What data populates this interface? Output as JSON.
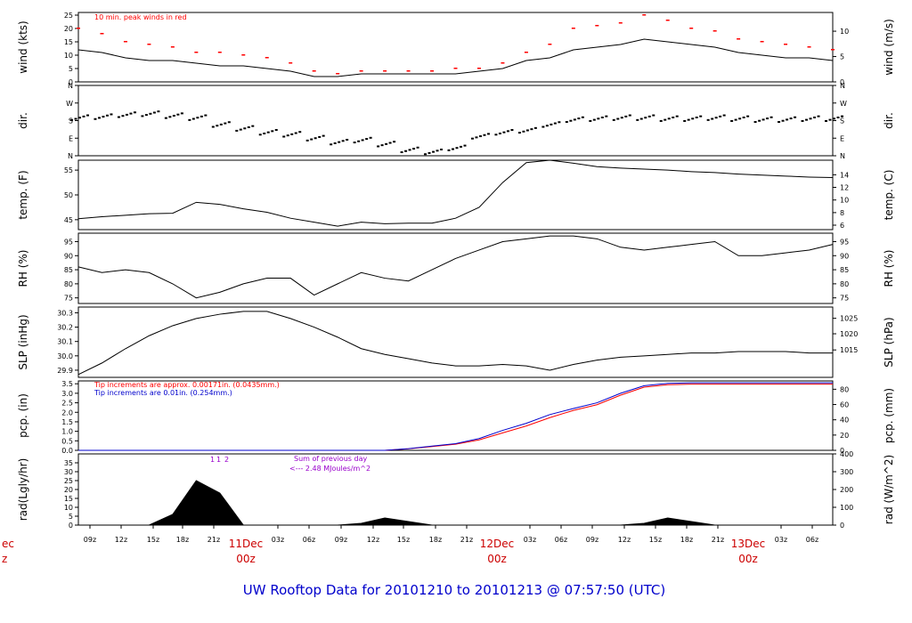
{
  "title": "UW Rooftop Data for 20101210  to  20101213 @ 07:57:50  (UTC)",
  "colors": {
    "red": "#ff0000",
    "blue": "#0000cc",
    "purple": "#9900cc",
    "daylabel": "#cc0000"
  },
  "x_axis": {
    "tick_labels": [
      "09z",
      "12z",
      "15z",
      "18z",
      "21z",
      "03z",
      "06z",
      "09z",
      "12z",
      "15z",
      "18z",
      "21z",
      "03z",
      "06z",
      "09z",
      "12z",
      "15z",
      "18z",
      "21z",
      "03z",
      "06z"
    ],
    "day_labels": [
      {
        "top": "ec",
        "bottom": "z"
      },
      {
        "top": "11Dec",
        "bottom": "00z"
      },
      {
        "top": "12Dec",
        "bottom": "00z"
      },
      {
        "top": "13Dec",
        "bottom": "00z"
      }
    ]
  },
  "chart_data": [
    {
      "type": "line",
      "ylabel_left": "wind (kts)",
      "ylabel_right": "wind (m/s)",
      "yticks_left": [
        "0",
        "5",
        "10",
        "15",
        "20",
        "25"
      ],
      "yticks_right": [
        "0",
        "5",
        "10"
      ],
      "annotation": "10 min. peak winds in red",
      "series": [
        {
          "values": [
            12,
            11,
            9,
            8,
            8,
            7,
            6,
            6,
            5,
            4,
            2,
            2,
            3,
            3,
            3,
            3,
            3,
            4,
            5,
            8,
            9,
            12,
            13,
            14,
            16,
            15,
            14,
            13,
            11,
            10,
            9,
            9,
            8
          ]
        },
        {
          "values": [
            20,
            18,
            15,
            14,
            13,
            11,
            11,
            10,
            9,
            7,
            4,
            3,
            4,
            4,
            4,
            4,
            5,
            5,
            7,
            11,
            14,
            20,
            21,
            22,
            25,
            23,
            20,
            19,
            16,
            15,
            14,
            13,
            12
          ]
        }
      ]
    },
    {
      "type": "scatter",
      "ylabel_left": "dir.",
      "ylabel_right": "dir.",
      "yticks_left": [
        "N",
        "E",
        "S",
        "W",
        "N"
      ],
      "yticks_right": [
        "N",
        "E",
        "S",
        "W",
        "N"
      ],
      "series": [
        {
          "values": [
            195,
            200,
            210,
            215,
            205,
            195,
            160,
            140,
            120,
            110,
            90,
            70,
            80,
            60,
            30,
            20,
            40,
            100,
            120,
            130,
            160,
            185,
            190,
            195,
            195,
            190,
            190,
            195,
            190,
            185,
            185,
            190,
            190
          ]
        }
      ]
    },
    {
      "type": "line",
      "ylabel_left": "temp. (F)",
      "ylabel_right": "temp. (C)",
      "yticks_left": [
        "45",
        "50",
        "55"
      ],
      "yticks_right": [
        "6",
        "8",
        "10",
        "12",
        "14"
      ],
      "series": [
        {
          "values": [
            45.2,
            45.6,
            45.9,
            46.2,
            46.3,
            48.5,
            48.1,
            47.2,
            46.5,
            45.3,
            44.5,
            43.7,
            44.5,
            44.2,
            44.3,
            44.3,
            45.3,
            47.5,
            52.5,
            56.5,
            57.0,
            56.4,
            55.7,
            55.4,
            55.2,
            55.0,
            54.7,
            54.5,
            54.2,
            54.0,
            53.8,
            53.6,
            53.5
          ]
        }
      ]
    },
    {
      "type": "line",
      "ylabel_left": "RH (%)",
      "ylabel_right": "RH (%)",
      "yticks_left": [
        "75",
        "80",
        "85",
        "90",
        "95"
      ],
      "yticks_right": [
        "75",
        "80",
        "85",
        "90",
        "95"
      ],
      "series": [
        {
          "values": [
            86,
            84,
            85,
            84,
            80,
            75,
            77,
            80,
            82,
            82,
            76,
            80,
            84,
            82,
            81,
            85,
            89,
            92,
            95,
            96,
            97,
            97,
            96,
            93,
            92,
            93,
            94,
            95,
            90,
            90,
            91,
            92,
            94
          ]
        }
      ]
    },
    {
      "type": "line",
      "ylabel_left": "SLP (inHg)",
      "ylabel_right": "SLP (hPa)",
      "yticks_left": [
        "29.9",
        "30.0",
        "30.1",
        "30.2",
        "30.3"
      ],
      "yticks_right": [
        "1015",
        "1020",
        "1025"
      ],
      "series": [
        {
          "values": [
            29.87,
            29.95,
            30.05,
            30.14,
            30.21,
            30.26,
            30.29,
            30.31,
            30.31,
            30.26,
            30.2,
            30.13,
            30.05,
            30.01,
            29.98,
            29.95,
            29.93,
            29.93,
            29.94,
            29.93,
            29.9,
            29.94,
            29.97,
            29.99,
            30.0,
            30.01,
            30.02,
            30.02,
            30.03,
            30.03,
            30.03,
            30.02,
            30.02
          ]
        }
      ]
    },
    {
      "type": "line",
      "ylabel_left": "pcp. (in)",
      "ylabel_right": "pcp. (mm)",
      "yticks_left": [
        "0.0",
        "0.5",
        "1.0",
        "1.5",
        "2.0",
        "2.5",
        "3.0",
        "3.5"
      ],
      "yticks_right": [
        "0",
        "20",
        "40",
        "60",
        "80"
      ],
      "notes": [
        "Tip increments are approx. 0.00171in. (0.0435mm.)",
        "Tip increments are 0.01in. (0.254mm.)"
      ],
      "series": [
        {
          "values": [
            0,
            0,
            0,
            0,
            0,
            0,
            0,
            0,
            0,
            0,
            0,
            0,
            0,
            0,
            0.08,
            0.2,
            0.32,
            0.55,
            0.92,
            1.28,
            1.72,
            2.1,
            2.4,
            2.9,
            3.32,
            3.45,
            3.48,
            3.48,
            3.48,
            3.48,
            3.48,
            3.48,
            3.48
          ]
        },
        {
          "values": [
            0,
            0,
            0,
            0,
            0,
            0,
            0,
            0,
            0,
            0,
            0,
            0,
            0,
            0,
            0.09,
            0.22,
            0.35,
            0.62,
            1.05,
            1.42,
            1.88,
            2.2,
            2.5,
            3.0,
            3.4,
            3.52,
            3.55,
            3.55,
            3.55,
            3.55,
            3.55,
            3.55,
            3.55
          ]
        }
      ]
    },
    {
      "type": "area",
      "ylabel_left": "rad(Lgly/hr)",
      "ylabel_right": "rad (W/m^2)",
      "yticks_left": [
        "0",
        "5",
        "10",
        "15",
        "20",
        "25",
        "30",
        "35"
      ],
      "yticks_right": [
        "0",
        "100",
        "200",
        "300",
        "400"
      ],
      "notes": [
        "Sum of previous day",
        "<--- 2.48 MJoules/m^2"
      ],
      "peak_labels": [
        "1",
        "1",
        "2"
      ],
      "series": [
        {
          "values": [
            0,
            0,
            0,
            0,
            6,
            25,
            18,
            0,
            0,
            0,
            0,
            0,
            1,
            4,
            2,
            0,
            0,
            0,
            0,
            0,
            0,
            0,
            0,
            0,
            1,
            4,
            2,
            0,
            0,
            0,
            0,
            0,
            0
          ]
        }
      ]
    }
  ]
}
